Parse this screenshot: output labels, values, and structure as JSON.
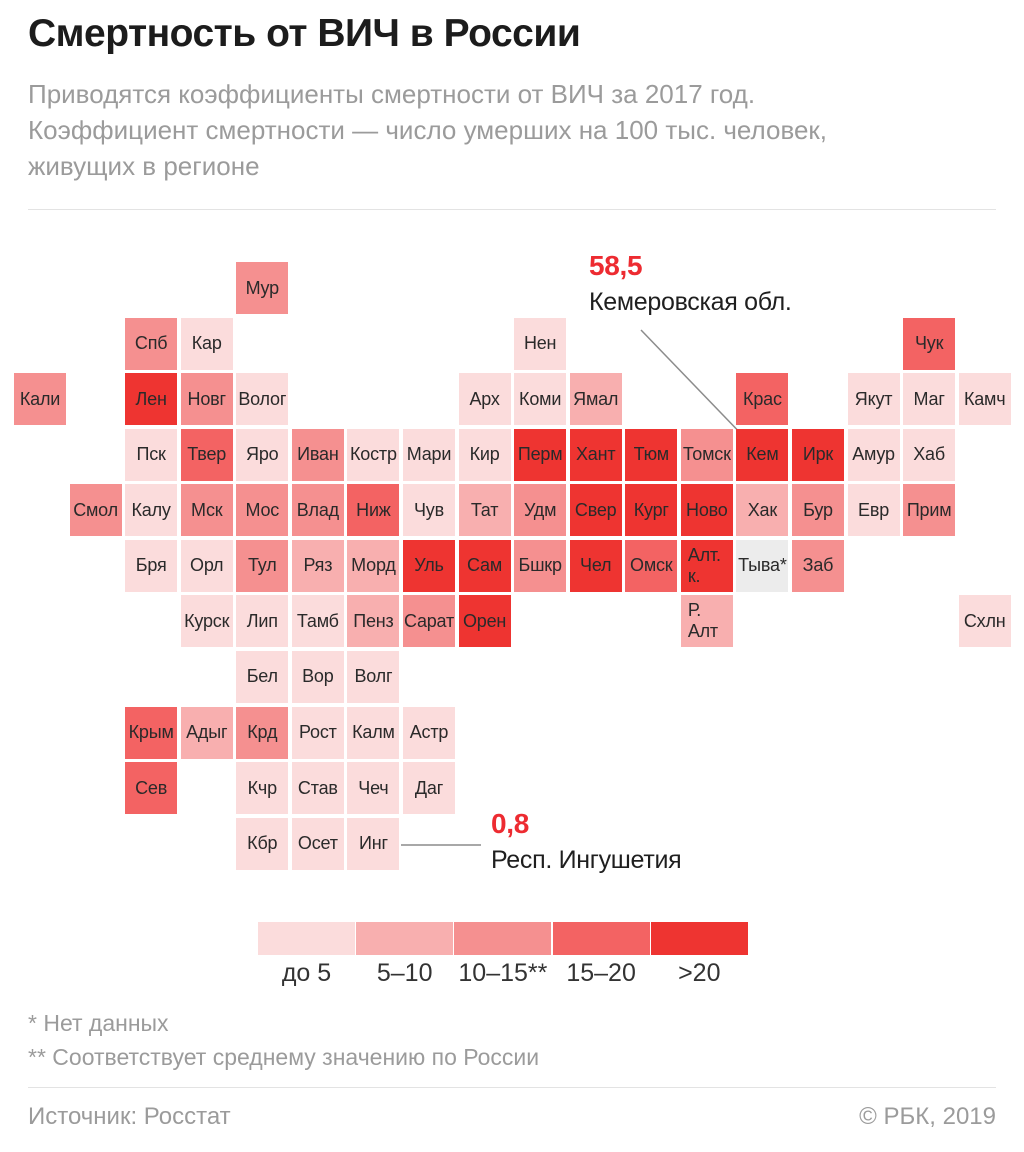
{
  "header": {
    "title": "Смертность от ВИЧ в России",
    "subtitle": "Приводятся коэффициенты смертности от ВИЧ за 2017 год.\nКоэффициент смертности — число умерших на 100 тыс. человек,\nживущих в регионе"
  },
  "chart_data": {
    "type": "heatmap",
    "title": "Смертность от ВИЧ в России",
    "units": "умерших на 100 тыс. человек, 2017 год",
    "categories": {
      "lt5": {
        "color": "#fbdcdc"
      },
      "5-10": {
        "color": "#f8afaf"
      },
      "10-15": {
        "color": "#f59090"
      },
      "15-20": {
        "color": "#f36363"
      },
      "gt20": {
        "color": "#ee3431"
      },
      "nodata": {
        "color": "#ececec"
      }
    },
    "legend": [
      {
        "label": "до 5",
        "cat": "lt5"
      },
      {
        "label": "5–10",
        "cat": "5-10"
      },
      {
        "label": "10–15**",
        "cat": "10-15"
      },
      {
        "label": "15–20",
        "cat": "15-20"
      },
      {
        "label": ">20",
        "cat": "gt20"
      }
    ],
    "tiles": [
      {
        "label": "Мур",
        "col": 4,
        "row": 0,
        "cat": "10-15"
      },
      {
        "label": "Спб",
        "col": 2,
        "row": 1,
        "cat": "10-15"
      },
      {
        "label": "Кар",
        "col": 3,
        "row": 1,
        "cat": "lt5"
      },
      {
        "label": "Нен",
        "col": 9,
        "row": 1,
        "cat": "lt5"
      },
      {
        "label": "Чук",
        "col": 16,
        "row": 1,
        "cat": "15-20"
      },
      {
        "label": "Кали",
        "col": 0,
        "row": 2,
        "cat": "10-15"
      },
      {
        "label": "Лен",
        "col": 2,
        "row": 2,
        "cat": "gt20"
      },
      {
        "label": "Новг",
        "col": 3,
        "row": 2,
        "cat": "10-15"
      },
      {
        "label": "Волог",
        "col": 4,
        "row": 2,
        "cat": "lt5"
      },
      {
        "label": "Арх",
        "col": 8,
        "row": 2,
        "cat": "lt5"
      },
      {
        "label": "Коми",
        "col": 9,
        "row": 2,
        "cat": "lt5"
      },
      {
        "label": "Ямал",
        "col": 10,
        "row": 2,
        "cat": "5-10"
      },
      {
        "label": "Крас",
        "col": 13,
        "row": 2,
        "cat": "15-20"
      },
      {
        "label": "Якут",
        "col": 15,
        "row": 2,
        "cat": "lt5"
      },
      {
        "label": "Маг",
        "col": 16,
        "row": 2,
        "cat": "lt5"
      },
      {
        "label": "Камч",
        "col": 17,
        "row": 2,
        "cat": "lt5"
      },
      {
        "label": "Пск",
        "col": 2,
        "row": 3,
        "cat": "lt5"
      },
      {
        "label": "Твер",
        "col": 3,
        "row": 3,
        "cat": "15-20"
      },
      {
        "label": "Яро",
        "col": 4,
        "row": 3,
        "cat": "lt5"
      },
      {
        "label": "Иван",
        "col": 5,
        "row": 3,
        "cat": "10-15"
      },
      {
        "label": "Костр",
        "col": 6,
        "row": 3,
        "cat": "lt5"
      },
      {
        "label": "Мари",
        "col": 7,
        "row": 3,
        "cat": "lt5"
      },
      {
        "label": "Кир",
        "col": 8,
        "row": 3,
        "cat": "lt5"
      },
      {
        "label": "Перм",
        "col": 9,
        "row": 3,
        "cat": "gt20"
      },
      {
        "label": "Хант",
        "col": 10,
        "row": 3,
        "cat": "gt20"
      },
      {
        "label": "Тюм",
        "col": 11,
        "row": 3,
        "cat": "gt20"
      },
      {
        "label": "Томск",
        "col": 12,
        "row": 3,
        "cat": "10-15"
      },
      {
        "label": "Кем",
        "col": 13,
        "row": 3,
        "cat": "gt20"
      },
      {
        "label": "Ирк",
        "col": 14,
        "row": 3,
        "cat": "gt20"
      },
      {
        "label": "Амур",
        "col": 15,
        "row": 3,
        "cat": "lt5"
      },
      {
        "label": "Хаб",
        "col": 16,
        "row": 3,
        "cat": "lt5"
      },
      {
        "label": "Смол",
        "col": 1,
        "row": 4,
        "cat": "10-15"
      },
      {
        "label": "Калу",
        "col": 2,
        "row": 4,
        "cat": "lt5"
      },
      {
        "label": "Мск",
        "col": 3,
        "row": 4,
        "cat": "10-15"
      },
      {
        "label": "Мос",
        "col": 4,
        "row": 4,
        "cat": "10-15"
      },
      {
        "label": "Влад",
        "col": 5,
        "row": 4,
        "cat": "10-15"
      },
      {
        "label": "Ниж",
        "col": 6,
        "row": 4,
        "cat": "15-20"
      },
      {
        "label": "Чув",
        "col": 7,
        "row": 4,
        "cat": "lt5"
      },
      {
        "label": "Тат",
        "col": 8,
        "row": 4,
        "cat": "5-10"
      },
      {
        "label": "Удм",
        "col": 9,
        "row": 4,
        "cat": "10-15"
      },
      {
        "label": "Свер",
        "col": 10,
        "row": 4,
        "cat": "gt20"
      },
      {
        "label": "Кург",
        "col": 11,
        "row": 4,
        "cat": "gt20"
      },
      {
        "label": "Ново",
        "col": 12,
        "row": 4,
        "cat": "gt20"
      },
      {
        "label": "Хак",
        "col": 13,
        "row": 4,
        "cat": "5-10"
      },
      {
        "label": "Бур",
        "col": 14,
        "row": 4,
        "cat": "10-15"
      },
      {
        "label": "Евр",
        "col": 15,
        "row": 4,
        "cat": "lt5"
      },
      {
        "label": "Прим",
        "col": 16,
        "row": 4,
        "cat": "10-15"
      },
      {
        "label": "Бря",
        "col": 2,
        "row": 5,
        "cat": "lt5"
      },
      {
        "label": "Орл",
        "col": 3,
        "row": 5,
        "cat": "lt5"
      },
      {
        "label": "Тул",
        "col": 4,
        "row": 5,
        "cat": "10-15"
      },
      {
        "label": "Ряз",
        "col": 5,
        "row": 5,
        "cat": "5-10"
      },
      {
        "label": "Морд",
        "col": 6,
        "row": 5,
        "cat": "5-10"
      },
      {
        "label": "Уль",
        "col": 7,
        "row": 5,
        "cat": "gt20"
      },
      {
        "label": "Сам",
        "col": 8,
        "row": 5,
        "cat": "gt20"
      },
      {
        "label": "Бшкр",
        "col": 9,
        "row": 5,
        "cat": "10-15"
      },
      {
        "label": "Чел",
        "col": 10,
        "row": 5,
        "cat": "gt20"
      },
      {
        "label": "Омск",
        "col": 11,
        "row": 5,
        "cat": "15-20"
      },
      {
        "label": "Алт.\nк.",
        "col": 12,
        "row": 5,
        "cat": "gt20"
      },
      {
        "label": "Тыва*",
        "col": 13,
        "row": 5,
        "cat": "nodata"
      },
      {
        "label": "Заб",
        "col": 14,
        "row": 5,
        "cat": "10-15"
      },
      {
        "label": "Курск",
        "col": 3,
        "row": 6,
        "cat": "lt5"
      },
      {
        "label": "Лип",
        "col": 4,
        "row": 6,
        "cat": "lt5"
      },
      {
        "label": "Тамб",
        "col": 5,
        "row": 6,
        "cat": "lt5"
      },
      {
        "label": "Пенз",
        "col": 6,
        "row": 6,
        "cat": "5-10"
      },
      {
        "label": "Сарат",
        "col": 7,
        "row": 6,
        "cat": "10-15"
      },
      {
        "label": "Орен",
        "col": 8,
        "row": 6,
        "cat": "gt20"
      },
      {
        "label": "Р.\nАлт",
        "col": 12,
        "row": 6,
        "cat": "5-10"
      },
      {
        "label": "Схлн",
        "col": 17,
        "row": 6,
        "cat": "lt5"
      },
      {
        "label": "Бел",
        "col": 4,
        "row": 7,
        "cat": "lt5"
      },
      {
        "label": "Вор",
        "col": 5,
        "row": 7,
        "cat": "lt5"
      },
      {
        "label": "Волг",
        "col": 6,
        "row": 7,
        "cat": "lt5"
      },
      {
        "label": "Крым",
        "col": 2,
        "row": 8,
        "cat": "15-20"
      },
      {
        "label": "Адыг",
        "col": 3,
        "row": 8,
        "cat": "5-10"
      },
      {
        "label": "Крд",
        "col": 4,
        "row": 8,
        "cat": "10-15"
      },
      {
        "label": "Рост",
        "col": 5,
        "row": 8,
        "cat": "lt5"
      },
      {
        "label": "Калм",
        "col": 6,
        "row": 8,
        "cat": "lt5"
      },
      {
        "label": "Астр",
        "col": 7,
        "row": 8,
        "cat": "lt5"
      },
      {
        "label": "Сев",
        "col": 2,
        "row": 9,
        "cat": "15-20"
      },
      {
        "label": "Кчр",
        "col": 4,
        "row": 9,
        "cat": "lt5"
      },
      {
        "label": "Став",
        "col": 5,
        "row": 9,
        "cat": "lt5"
      },
      {
        "label": "Чеч",
        "col": 6,
        "row": 9,
        "cat": "lt5"
      },
      {
        "label": "Даг",
        "col": 7,
        "row": 9,
        "cat": "lt5"
      },
      {
        "label": "Кбр",
        "col": 4,
        "row": 10,
        "cat": "lt5"
      },
      {
        "label": "Осет",
        "col": 5,
        "row": 10,
        "cat": "lt5"
      },
      {
        "label": "Инг",
        "col": 6,
        "row": 10,
        "cat": "lt5"
      }
    ],
    "annotations": [
      {
        "value": "58,5",
        "label": "Кемеровская обл.",
        "region": "Кем"
      },
      {
        "value": "0,8",
        "label": "Респ. Ингушетия",
        "region": "Инг"
      }
    ]
  },
  "footnotes": [
    "* Нет данных",
    "** Соответствует среднему значению по России"
  ],
  "footer": {
    "source": "Источник: Росстат",
    "credit": "© РБК, 2019"
  }
}
